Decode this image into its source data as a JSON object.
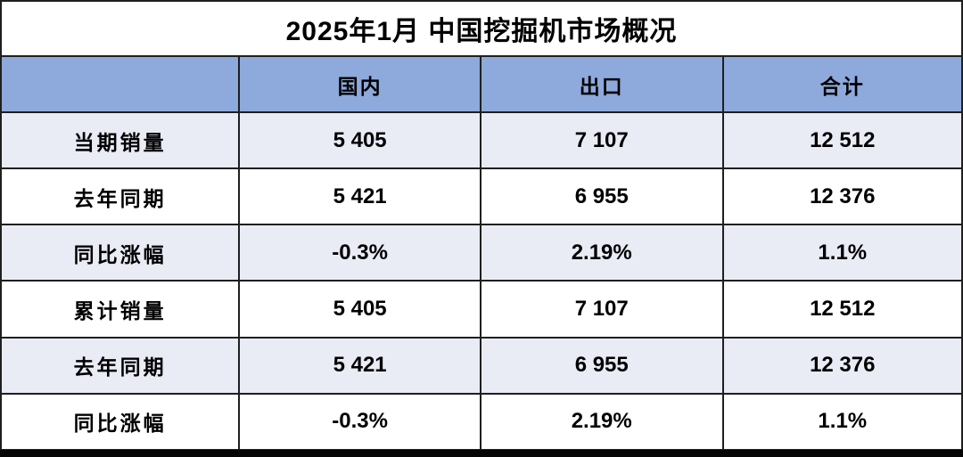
{
  "page": {
    "title": "2025年1月 中国挖掘机市场概况"
  },
  "chart_data": {
    "type": "table",
    "title": "2025年1月 中国挖掘机市场概况",
    "columns": [
      "",
      "国内",
      "出口",
      "合计"
    ],
    "rows": [
      {
        "label": "当期销量",
        "values": [
          "5 405",
          "7 107",
          "12 512"
        ]
      },
      {
        "label": "去年同期",
        "values": [
          "5 421",
          "6 955",
          "12 376"
        ]
      },
      {
        "label": "同比涨幅",
        "values": [
          "-0.3%",
          "2.19%",
          "1.1%"
        ]
      },
      {
        "label": "累计销量",
        "values": [
          "5 405",
          "7 107",
          "12 512"
        ]
      },
      {
        "label": "去年同期",
        "values": [
          "5 421",
          "6 955",
          "12 376"
        ]
      },
      {
        "label": "同比涨幅",
        "values": [
          "-0.3%",
          "2.19%",
          "1.1%"
        ]
      }
    ]
  },
  "colors": {
    "header_bg": "#8EA9DB",
    "row_alt_bg": "#E9EBF5",
    "row_bg": "#FFFFFF",
    "border": "#1f1f1f",
    "text": "#000000",
    "bottom_bar": "#050505"
  }
}
